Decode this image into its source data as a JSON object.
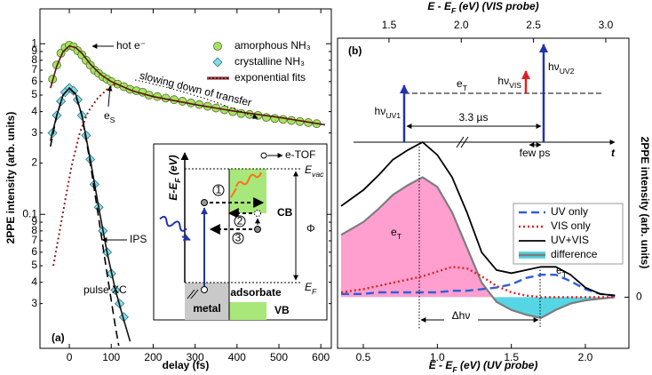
{
  "chart_data": [
    {
      "type": "scatter",
      "panel_label": "(a)",
      "xlabel": "delay (fs)",
      "ylabel": "2PPE intensity (arb. units)",
      "xlim": [
        -70,
        625
      ],
      "xticks": [
        0,
        100,
        200,
        300,
        400,
        500,
        600
      ],
      "ylim": [
        0.0164,
        1.6
      ],
      "log_y": true,
      "yticks": [
        1,
        {
          "value": 0.9,
          "label": "9"
        },
        {
          "value": 0.8,
          "label": "8"
        },
        {
          "value": 0.7,
          "label": "7"
        },
        {
          "value": 0.6,
          "label": "6"
        },
        {
          "value": 0.5,
          "label": "5"
        },
        {
          "value": 0.4,
          "label": "4"
        },
        {
          "value": 0.3,
          "label": "3"
        },
        {
          "value": 0.2,
          "label": "2"
        },
        0.1,
        {
          "value": 0.09,
          "label": "9"
        },
        {
          "value": 0.08,
          "label": "8"
        },
        {
          "value": 0.07,
          "label": "7"
        },
        {
          "value": 0.06,
          "label": "6"
        },
        {
          "value": 0.05,
          "label": "5"
        },
        {
          "value": 0.04,
          "label": "4"
        },
        {
          "value": 0.03,
          "label": "3"
        }
      ],
      "legend": "upper right",
      "series": [
        {
          "name": "amorphous NH₃",
          "color": "#a6e35f",
          "marker": "circle",
          "x": [
            -40,
            -30,
            -20,
            -10,
            0,
            10,
            20,
            30,
            40,
            50,
            60,
            70,
            80,
            90,
            100,
            115,
            130,
            145,
            160,
            175,
            190,
            210,
            230,
            250,
            270,
            290,
            310,
            330,
            350,
            370,
            390,
            410,
            430,
            450,
            470,
            490,
            510,
            530,
            550,
            570,
            590
          ],
          "values": [
            0.62,
            0.75,
            0.88,
            0.95,
            0.98,
            0.96,
            0.91,
            0.86,
            0.8,
            0.75,
            0.7,
            0.67,
            0.64,
            0.62,
            0.6,
            0.58,
            0.56,
            0.54,
            0.53,
            0.52,
            0.5,
            0.49,
            0.48,
            0.47,
            0.46,
            0.45,
            0.44,
            0.43,
            0.42,
            0.41,
            0.4,
            0.39,
            0.385,
            0.38,
            0.37,
            0.365,
            0.36,
            0.355,
            0.35,
            0.345,
            0.34
          ]
        },
        {
          "name": "crystalline NH₃",
          "color": "#86dde6",
          "marker": "diamond",
          "x": [
            -40,
            -30,
            -20,
            -10,
            0,
            10,
            20,
            30,
            40,
            50,
            60,
            70,
            80,
            90,
            100,
            110,
            120,
            130
          ],
          "values": [
            0.3,
            0.38,
            0.46,
            0.52,
            0.55,
            0.53,
            0.47,
            0.38,
            0.29,
            0.21,
            0.15,
            0.11,
            0.08,
            0.06,
            0.045,
            0.036,
            0.03,
            0.025
          ]
        },
        {
          "name": "exponential fits",
          "color": "#5a1414",
          "style": "solid",
          "x": [
            -45,
            -30,
            -15,
            0,
            15,
            30,
            50,
            75,
            100,
            150,
            200,
            300,
            400,
            500,
            610
          ],
          "values": [
            0.55,
            0.74,
            0.9,
            0.97,
            0.95,
            0.88,
            0.76,
            0.66,
            0.6,
            0.53,
            0.49,
            0.44,
            0.4,
            0.37,
            0.335
          ]
        },
        {
          "color": "#111111",
          "style": "solid",
          "x": [
            -45,
            -30,
            -15,
            0,
            15,
            30,
            50,
            70,
            90,
            110,
            130,
            145
          ],
          "values": [
            0.27,
            0.38,
            0.5,
            0.55,
            0.51,
            0.38,
            0.21,
            0.11,
            0.06,
            0.036,
            0.024,
            0.018
          ]
        },
        {
          "color": "#8b2020",
          "style": "dotted",
          "x": [
            -38,
            -25,
            -10,
            5,
            25,
            45,
            68,
            90,
            110
          ],
          "values": [
            0.05,
            0.075,
            0.12,
            0.19,
            0.3,
            0.4,
            0.48,
            0.54,
            0.58
          ]
        },
        {
          "color": "#000000",
          "style": "dashed",
          "x": [
            -45,
            -30,
            -15,
            0,
            15,
            30,
            50,
            70,
            90,
            110,
            118
          ],
          "values": [
            0.25,
            0.38,
            0.5,
            0.55,
            0.5,
            0.38,
            0.2,
            0.095,
            0.045,
            0.022,
            0.017
          ]
        }
      ],
      "annotations": {
        "hot": "hot e⁻",
        "es": [
          {
            "t": "e"
          },
          {
            "t": "S",
            "sub": true
          }
        ],
        "slowing": "slowing down of transfer",
        "ips": "IPS",
        "pulse_xc": "pulse XC"
      },
      "inset": {
        "energy_axis": [
          {
            "t": "E-E"
          },
          {
            "t": "F",
            "sub": true
          },
          {
            "t": " (eV)"
          }
        ],
        "etof": "e-TOF",
        "evac": [
          {
            "t": "E"
          },
          {
            "t": "vac",
            "sub": true
          }
        ],
        "cb": "CB",
        "phi": "Φ",
        "ef": [
          {
            "t": "E"
          },
          {
            "t": "F",
            "sub": true
          }
        ],
        "adsorbate": "adsorbate",
        "metal": "metal",
        "vb": "VB",
        "steps": [
          "1",
          "2",
          "3"
        ]
      }
    },
    {
      "type": "line",
      "panel_label": "(b)",
      "xlabel": [
        {
          "t": "E - E"
        },
        {
          "t": "F",
          "sub": true
        },
        {
          "t": " (eV) (UV probe)"
        }
      ],
      "x2label": [
        {
          "t": "E - E"
        },
        {
          "t": "F",
          "sub": true
        },
        {
          "t": " (eV) (VIS probe)"
        }
      ],
      "ylabel": "2PPE intensity (arb. units)",
      "y_axis": "right",
      "xlim": [
        0.326,
        2.294
      ],
      "xticks": [
        0.5,
        {
          "value": 1,
          "label": "1.0"
        },
        1.5,
        {
          "value": 2,
          "label": "2.0"
        }
      ],
      "x2lim": [
        1.144,
        3.16
      ],
      "x2ticks": [
        1.5,
        {
          "value": 2,
          "label": "2.0"
        },
        2.5,
        {
          "value": 3,
          "label": "3.0"
        }
      ],
      "ylim": [
        -0.32,
        1.62
      ],
      "yticks": [
        0
      ],
      "legend": "center right",
      "x": [
        0.35,
        0.5,
        0.6,
        0.7,
        0.8,
        0.9,
        1.0,
        1.1,
        1.2,
        1.3,
        1.4,
        1.5,
        1.6,
        1.7,
        1.8,
        1.9,
        2.0,
        2.1,
        2.2
      ],
      "series": [
        {
          "name": "UV only",
          "color": "#2f5fd8",
          "style": "dashed",
          "values": [
            0.02,
            0.02,
            0.03,
            0.03,
            0.03,
            0.03,
            0.03,
            0.04,
            0.04,
            0.05,
            0.06,
            0.08,
            0.12,
            0.14,
            0.14,
            0.1,
            0.05,
            0.02,
            0.01
          ]
        },
        {
          "name": "VIS only",
          "color": "#e02020",
          "style": "dotted",
          "values": [
            0.03,
            0.05,
            0.07,
            0.09,
            0.11,
            0.13,
            0.16,
            0.19,
            0.18,
            0.13,
            0.07,
            0.03,
            0.01,
            0,
            0,
            0,
            0,
            0,
            0
          ]
        },
        {
          "name": "UV+VIS",
          "color": "#000000",
          "style": "solid",
          "values": [
            0.57,
            0.67,
            0.76,
            0.86,
            0.92,
            0.97,
            0.89,
            0.75,
            0.53,
            0.28,
            0.17,
            0.15,
            0.17,
            0.19,
            0.19,
            0.14,
            0.06,
            0.02,
            0.01
          ]
        },
        {
          "name": "difference",
          "color": "#7d7d7d",
          "style": "solid",
          "fill_above": "#ff9fcf",
          "fill_below": "#56d6e4",
          "values": [
            0.39,
            0.47,
            0.55,
            0.64,
            0.7,
            0.75,
            0.69,
            0.53,
            0.31,
            0.09,
            -0.03,
            -0.08,
            -0.11,
            -0.13,
            -0.08,
            -0.04,
            -0.02,
            -0.01,
            0
          ]
        }
      ],
      "annotations": {
        "et_main": [
          {
            "t": "e"
          },
          {
            "t": "T",
            "sub": true
          }
        ],
        "et_uv": [
          {
            "t": "e"
          },
          {
            "t": "T",
            "sub": true
          }
        ],
        "delta": "Δhν"
      },
      "timing": {
        "uv1": [
          {
            "t": "hν"
          },
          {
            "t": "UV1",
            "sub": true
          }
        ],
        "vis": [
          {
            "t": "hν"
          },
          {
            "t": "VIS",
            "sub": true
          }
        ],
        "uv2": [
          {
            "t": "hν"
          },
          {
            "t": "UV2",
            "sub": true
          }
        ],
        "et": [
          {
            "t": "e"
          },
          {
            "t": "T",
            "sub": true
          }
        ],
        "delay": "3.3 µs",
        "few": "few ps",
        "t": "t"
      }
    }
  ]
}
